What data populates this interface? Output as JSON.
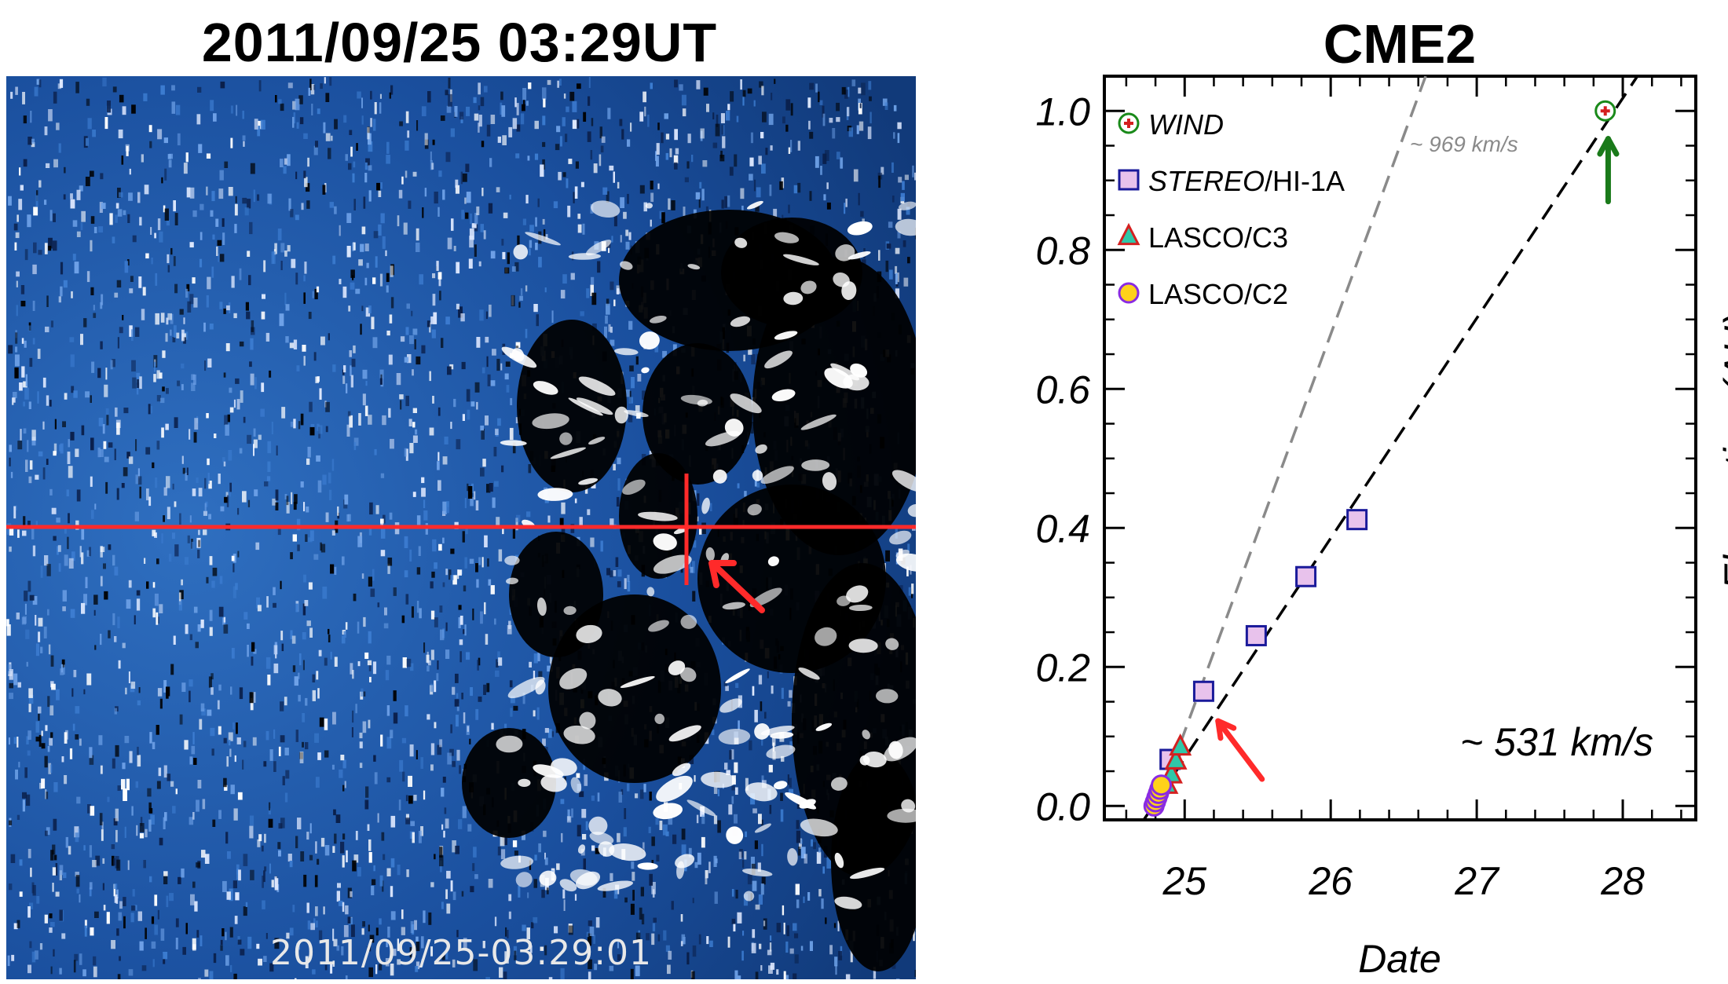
{
  "left_panel": {
    "title": "2011/09/25  03:29UT",
    "timestamp": "2011/09/25-03:29:01",
    "marker_color": "#ff2a2a"
  },
  "chart_data": {
    "type": "scatter",
    "title": "CME2",
    "xlabel": "Date",
    "ylabel": "Elongation (AU)",
    "xlim": [
      24.45,
      28.5
    ],
    "ylim": [
      -0.02,
      1.05
    ],
    "x_ticks": [
      25,
      26,
      27,
      28
    ],
    "y_ticks": [
      0.0,
      0.2,
      0.4,
      0.6,
      0.8,
      1.0
    ],
    "y_tick_labels": [
      "0.0",
      "0.2",
      "0.4",
      "0.6",
      "0.8",
      "1.0"
    ],
    "legend_position": "top-left",
    "series": [
      {
        "name": "WIND",
        "marker": "circle-plus",
        "edge_color": "#1a8a1a",
        "fill_color": "#d42020",
        "x": [
          27.88
        ],
        "y": [
          1.0
        ]
      },
      {
        "name": "STEREO/HI-1A",
        "marker": "square",
        "edge_color": "#1a1a9a",
        "fill_color": "#e8c2ec",
        "x": [
          24.9,
          25.13,
          25.49,
          25.83,
          26.18
        ],
        "y": [
          0.067,
          0.165,
          0.245,
          0.33,
          0.412
        ]
      },
      {
        "name": "LASCO/C3",
        "marker": "triangle",
        "edge_color": "#d42020",
        "fill_color": "#2fc7a8",
        "x": [
          24.88,
          24.91,
          24.94,
          24.97
        ],
        "y": [
          0.03,
          0.045,
          0.065,
          0.085
        ]
      },
      {
        "name": "LASCO/C2",
        "marker": "circle",
        "edge_color": "#8a2be2",
        "fill_color": "#ffd21a",
        "x": [
          24.79,
          24.8,
          24.81,
          24.82,
          24.83,
          24.84
        ],
        "y": [
          0.0,
          0.006,
          0.012,
          0.018,
          0.024,
          0.03
        ]
      }
    ],
    "fit_lines": [
      {
        "label": "~ 531 km/s",
        "color": "#000000",
        "x": [
          24.72,
          28.1
        ],
        "y": [
          -0.02,
          1.05
        ]
      },
      {
        "label": "~ 969 km/s",
        "color": "#8a8a8a",
        "x": [
          24.97,
          26.65
        ],
        "y": [
          0.09,
          1.05
        ]
      }
    ],
    "annotations": [
      {
        "text": "~ 531 km/s"
      },
      {
        "text": "~ 969 km/s"
      }
    ],
    "arrows": [
      {
        "color": "#ff2a2a",
        "target": [
          25.25,
          0.12
        ]
      },
      {
        "color": "#1a7a1a",
        "target": [
          27.9,
          0.96
        ]
      }
    ]
  }
}
